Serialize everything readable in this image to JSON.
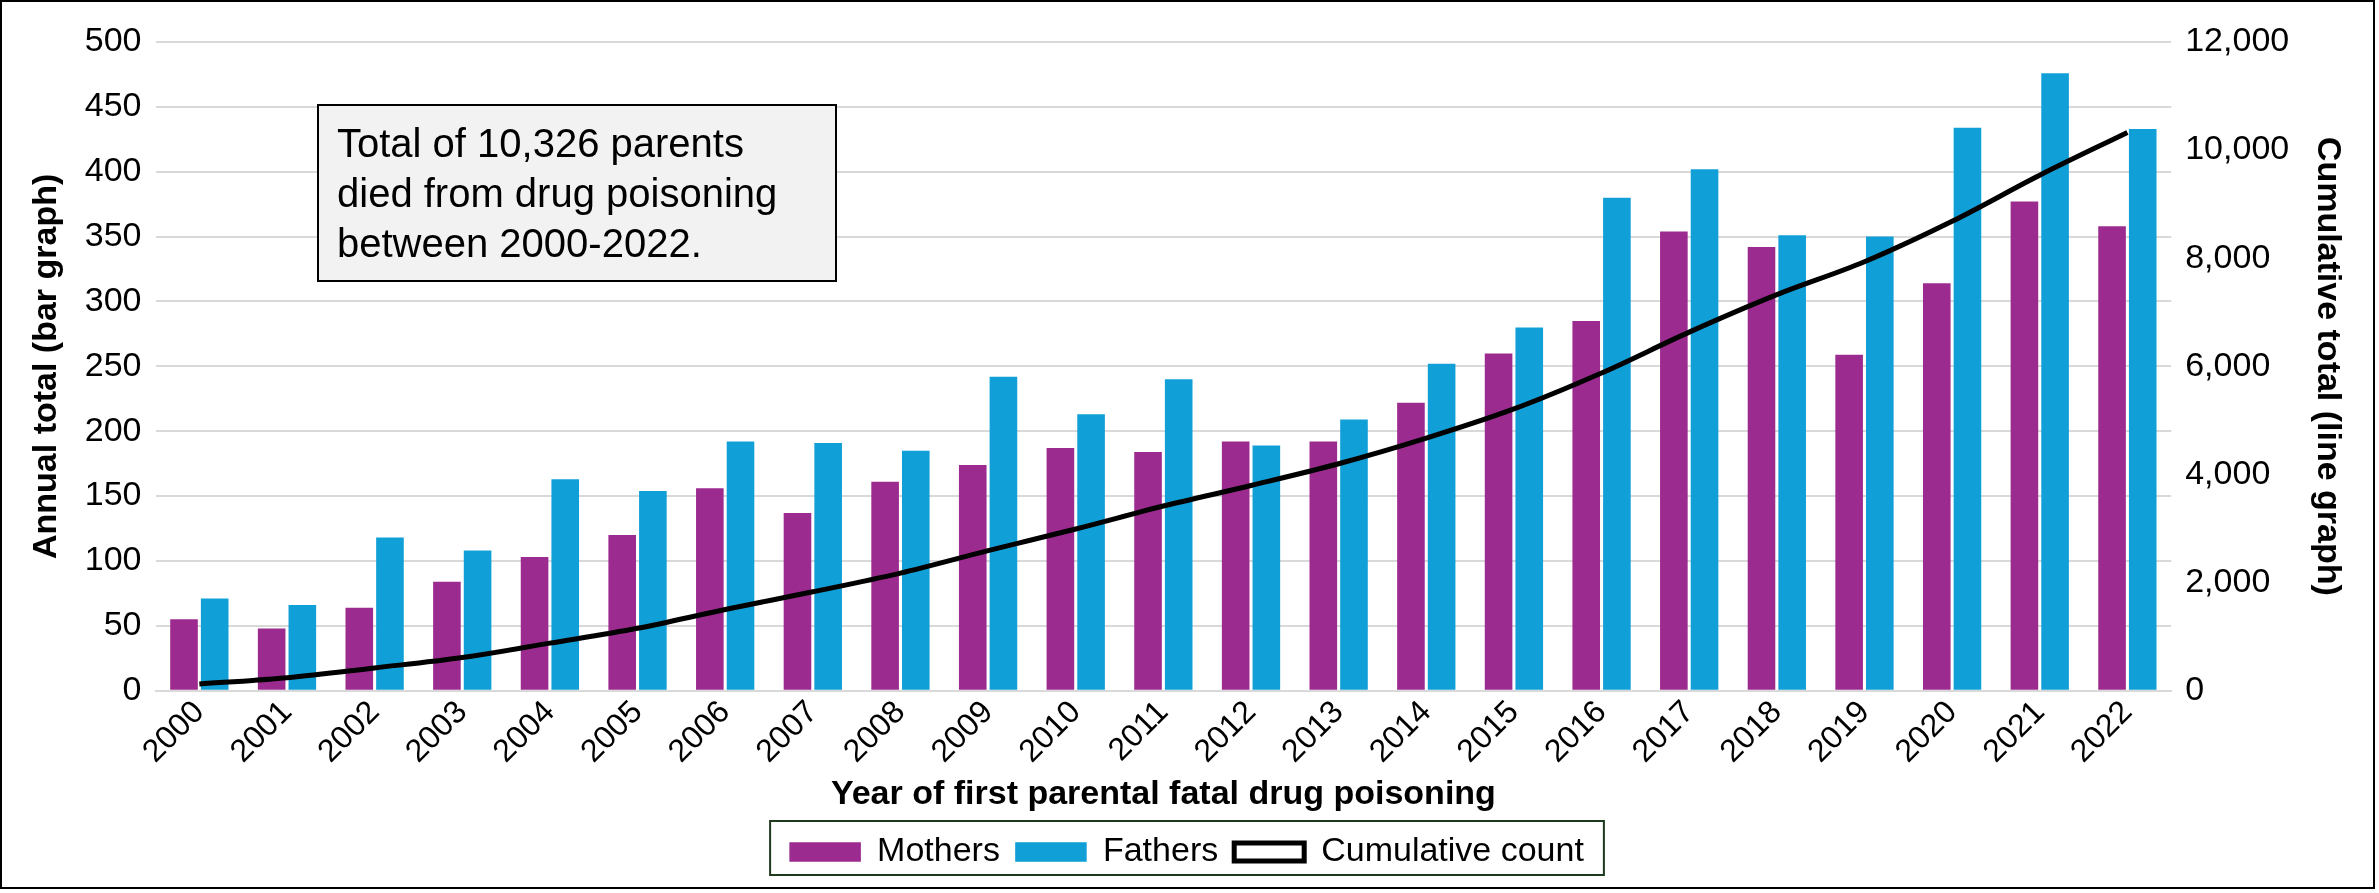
{
  "chart_data": {
    "type": "bar",
    "xlabel": "Year of first parental fatal drug poisoning",
    "ylabel": "Annual total (bar graph)",
    "y2label": "Cumulative total (line graph)",
    "categories": [
      "2000",
      "2001",
      "2002",
      "2003",
      "2004",
      "2005",
      "2006",
      "2007",
      "2008",
      "2009",
      "2010",
      "2011",
      "2012",
      "2013",
      "2014",
      "2015",
      "2016",
      "2017",
      "2018",
      "2019",
      "2020",
      "2021",
      "2022"
    ],
    "series": [
      {
        "name": "Mothers",
        "color": "#9c2b8f",
        "values": [
          55,
          48,
          64,
          84,
          103,
          120,
          156,
          137,
          161,
          174,
          187,
          184,
          192,
          192,
          222,
          260,
          285,
          354,
          342,
          259,
          314,
          377,
          358
        ]
      },
      {
        "name": "Fathers",
        "color": "#109fd6",
        "values": [
          71,
          66,
          118,
          108,
          163,
          154,
          192,
          191,
          185,
          242,
          213,
          240,
          189,
          209,
          252,
          280,
          380,
          402,
          351,
          350,
          434,
          476,
          433
        ]
      },
      {
        "name": "Cumulative count",
        "type": "line",
        "axis": "y2",
        "color": "#000000",
        "values": [
          126,
          240,
          422,
          614,
          880,
          1154,
          1502,
          1830,
          2176,
          2592,
          2992,
          3416,
          3797,
          4198,
          4672,
          5212,
          5877,
          6633,
          7326,
          7935,
          8683,
          9536,
          10326
        ]
      }
    ],
    "ylim": [
      0,
      500
    ],
    "yticks": [
      0,
      50,
      100,
      150,
      200,
      250,
      300,
      350,
      400,
      450,
      500
    ],
    "y2lim": [
      0,
      12000
    ],
    "y2ticks": [
      0,
      {
        "value": 2000,
        "label": "2,000"
      },
      {
        "value": 4000,
        "label": "4,000"
      },
      {
        "value": 6000,
        "label": "6,000"
      },
      {
        "value": 8000,
        "label": "8,000"
      },
      {
        "value": 10000,
        "label": "10,000"
      },
      {
        "value": 12000,
        "label": "12,000"
      }
    ],
    "grid": "y",
    "legend": "bottom",
    "marker": "none",
    "line_style": "solid",
    "annotations": [
      "Total of 10,326 parents died from drug poisoning between 2000-2022."
    ]
  }
}
